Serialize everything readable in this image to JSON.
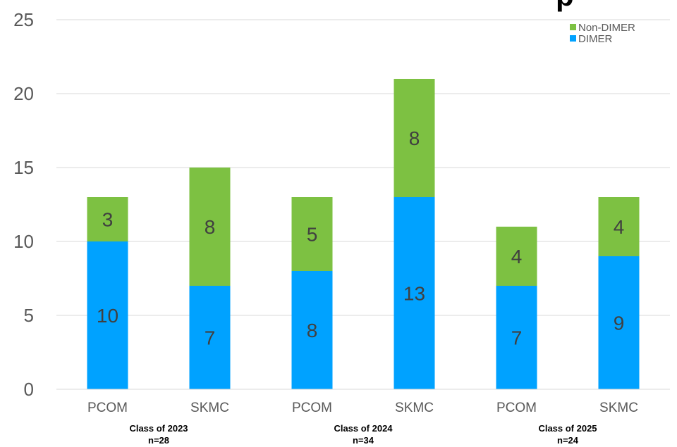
{
  "chart_data": {
    "type": "bar",
    "stacked": true,
    "title_fragment": "p",
    "categories": [
      "PCOM",
      "SKMC",
      "PCOM",
      "SKMC",
      "PCOM",
      "SKMC"
    ],
    "groups": [
      {
        "label": "Class of 2023",
        "n": "n=28"
      },
      {
        "label": "Class of 2024",
        "n": "n=34"
      },
      {
        "label": "Class of 2025",
        "n": "n=24"
      }
    ],
    "series": [
      {
        "name": "DIMER",
        "color": "#00A2FF",
        "values": [
          10,
          7,
          8,
          13,
          7,
          9
        ]
      },
      {
        "name": "Non-DIMER",
        "color": "#7DC142",
        "values": [
          3,
          8,
          5,
          8,
          4,
          4
        ]
      }
    ],
    "ylim": [
      0,
      25
    ],
    "yticks": [
      0,
      5,
      10,
      15,
      20,
      25
    ],
    "grid": true,
    "legend": "top-right"
  }
}
